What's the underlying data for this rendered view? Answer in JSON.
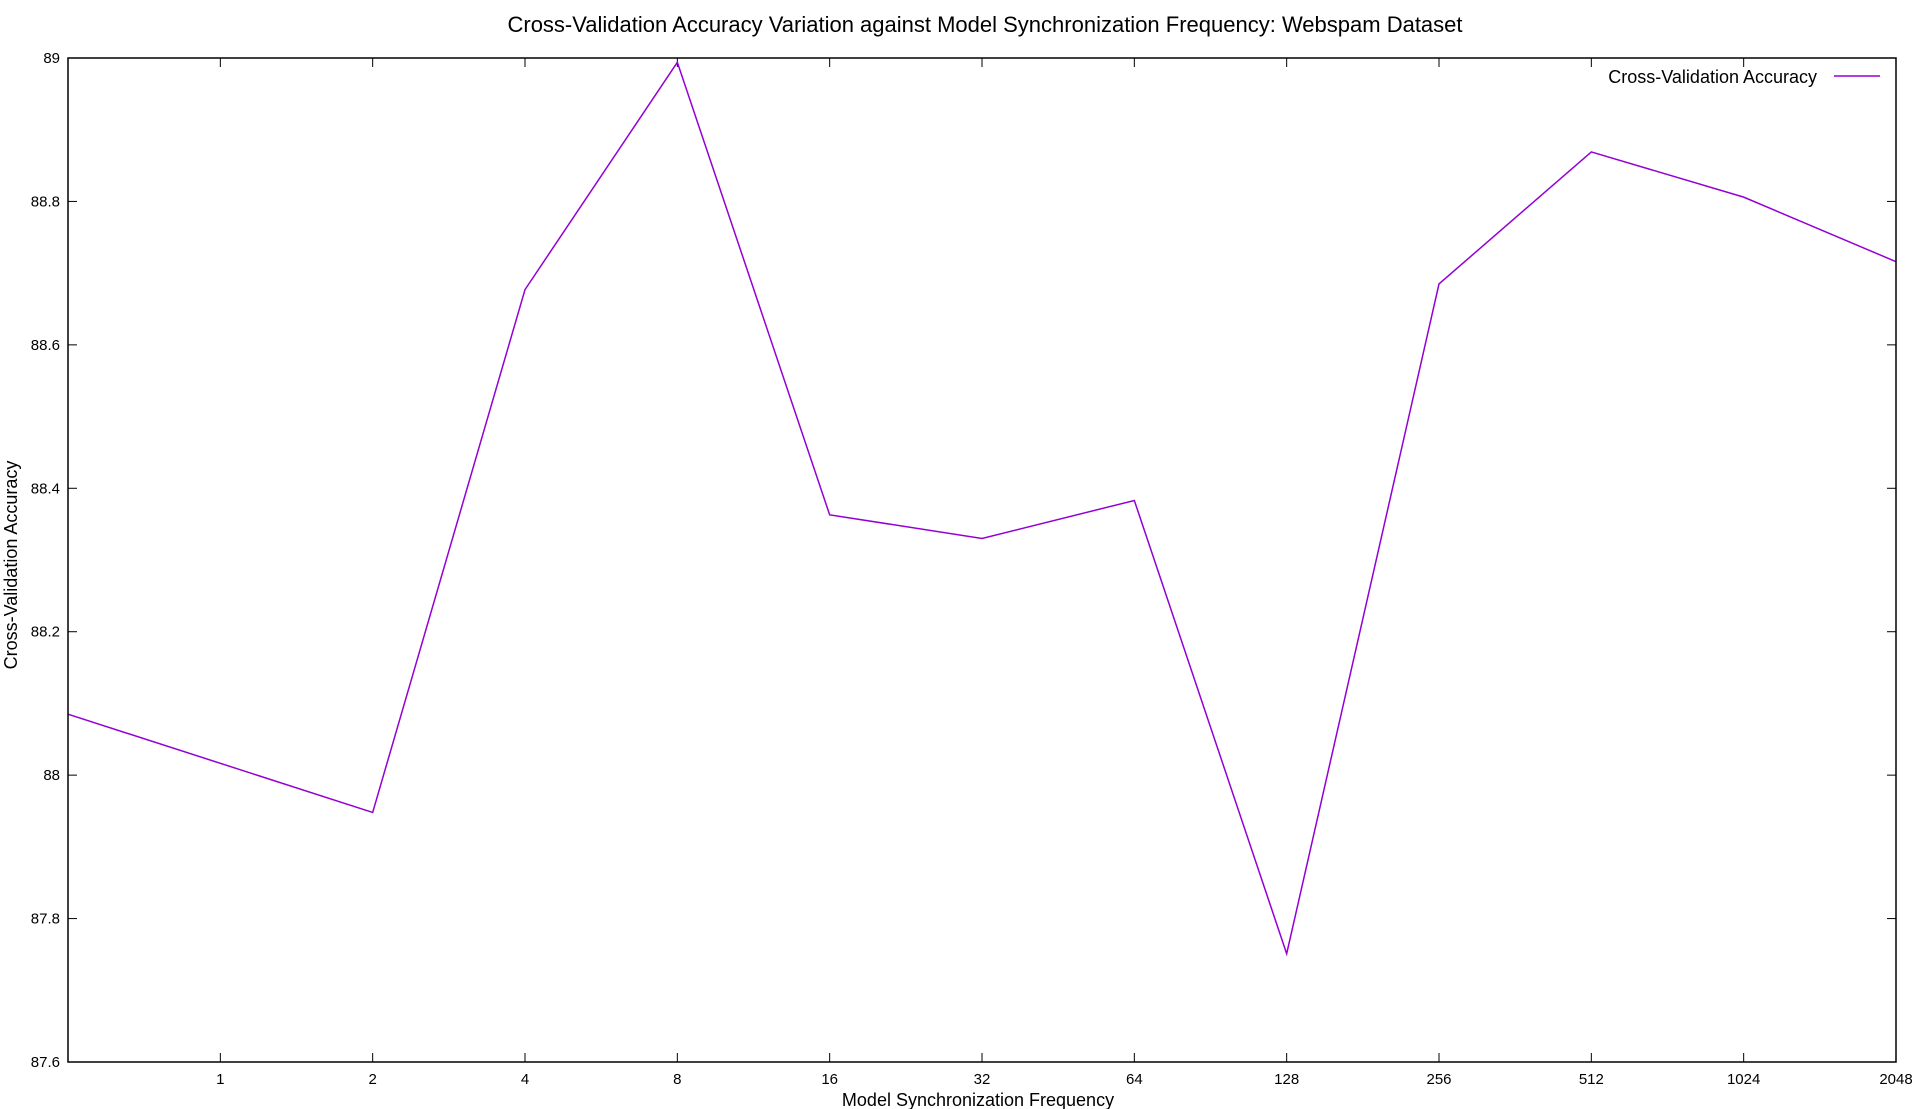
{
  "chart_data": {
    "type": "line",
    "title": "Cross-Validation Accuracy Variation against Model Synchronization Frequency: Webspam Dataset",
    "xlabel": "Model Synchronization Frequency",
    "ylabel": "Cross-Validation Accuracy",
    "x_scale": "log2",
    "xlim": [
      0.5,
      2048
    ],
    "ylim": [
      87.6,
      89.0
    ],
    "x_ticks": [
      1,
      2,
      4,
      8,
      16,
      32,
      64,
      128,
      256,
      512,
      1024,
      2048
    ],
    "x_tick_labels": [
      "1",
      "2",
      "4",
      "8",
      "16",
      "32",
      "64",
      "128",
      "256",
      "512",
      "1024",
      "2048"
    ],
    "y_ticks": [
      87.6,
      87.8,
      88.0,
      88.2,
      88.4,
      88.6,
      88.8,
      89.0
    ],
    "y_tick_labels": [
      "87.6",
      "87.8",
      "88",
      "88.2",
      "88.4",
      "88.6",
      "88.8",
      "89"
    ],
    "grid": false,
    "legend_position": "top-right",
    "series": [
      {
        "name": "Cross-Validation Accuracy",
        "color": "#9400d3",
        "x": [
          0.5,
          2,
          4,
          8,
          16,
          32,
          64,
          128,
          256,
          512,
          1024,
          2048
        ],
        "y": [
          88.085,
          87.948,
          88.677,
          88.994,
          88.363,
          88.33,
          88.383,
          87.751,
          88.685,
          88.869,
          88.806,
          88.716
        ]
      }
    ]
  }
}
